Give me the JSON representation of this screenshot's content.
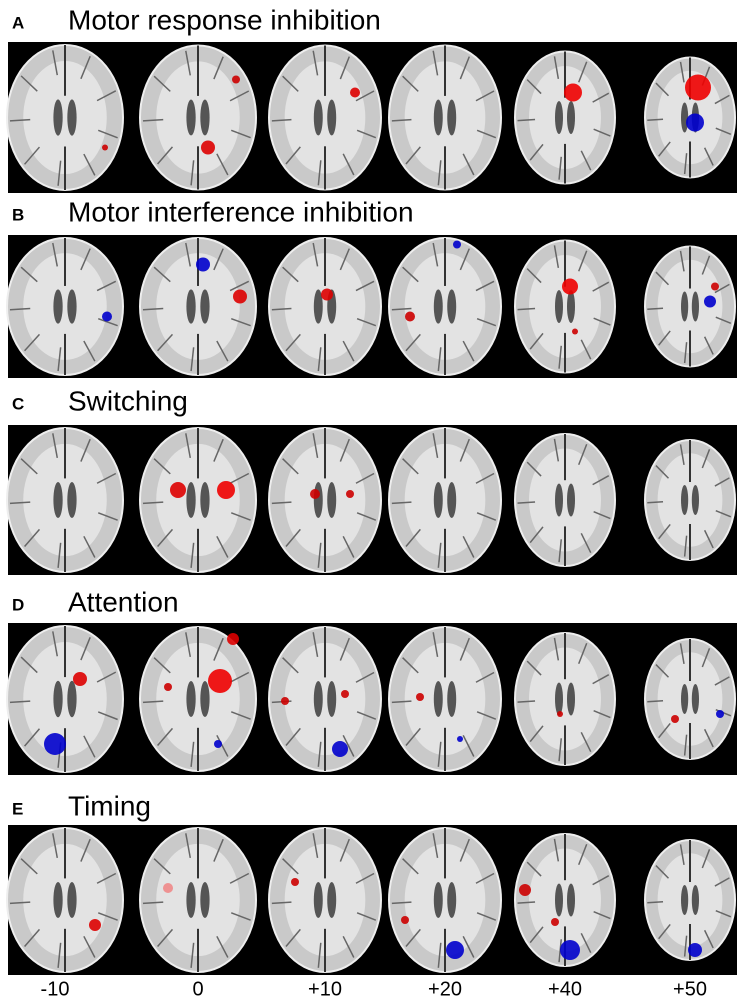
{
  "panels": [
    {
      "letter": "A",
      "title": "Motor response inhibition"
    },
    {
      "letter": "B",
      "title": "Motor interference inhibition"
    },
    {
      "letter": "C",
      "title": "Switching"
    },
    {
      "letter": "D",
      "title": "Attention"
    },
    {
      "letter": "E",
      "title": "Timing"
    }
  ],
  "slice_labels": [
    "-10",
    "0",
    "+10",
    "+20",
    "+40",
    "+50"
  ]
}
